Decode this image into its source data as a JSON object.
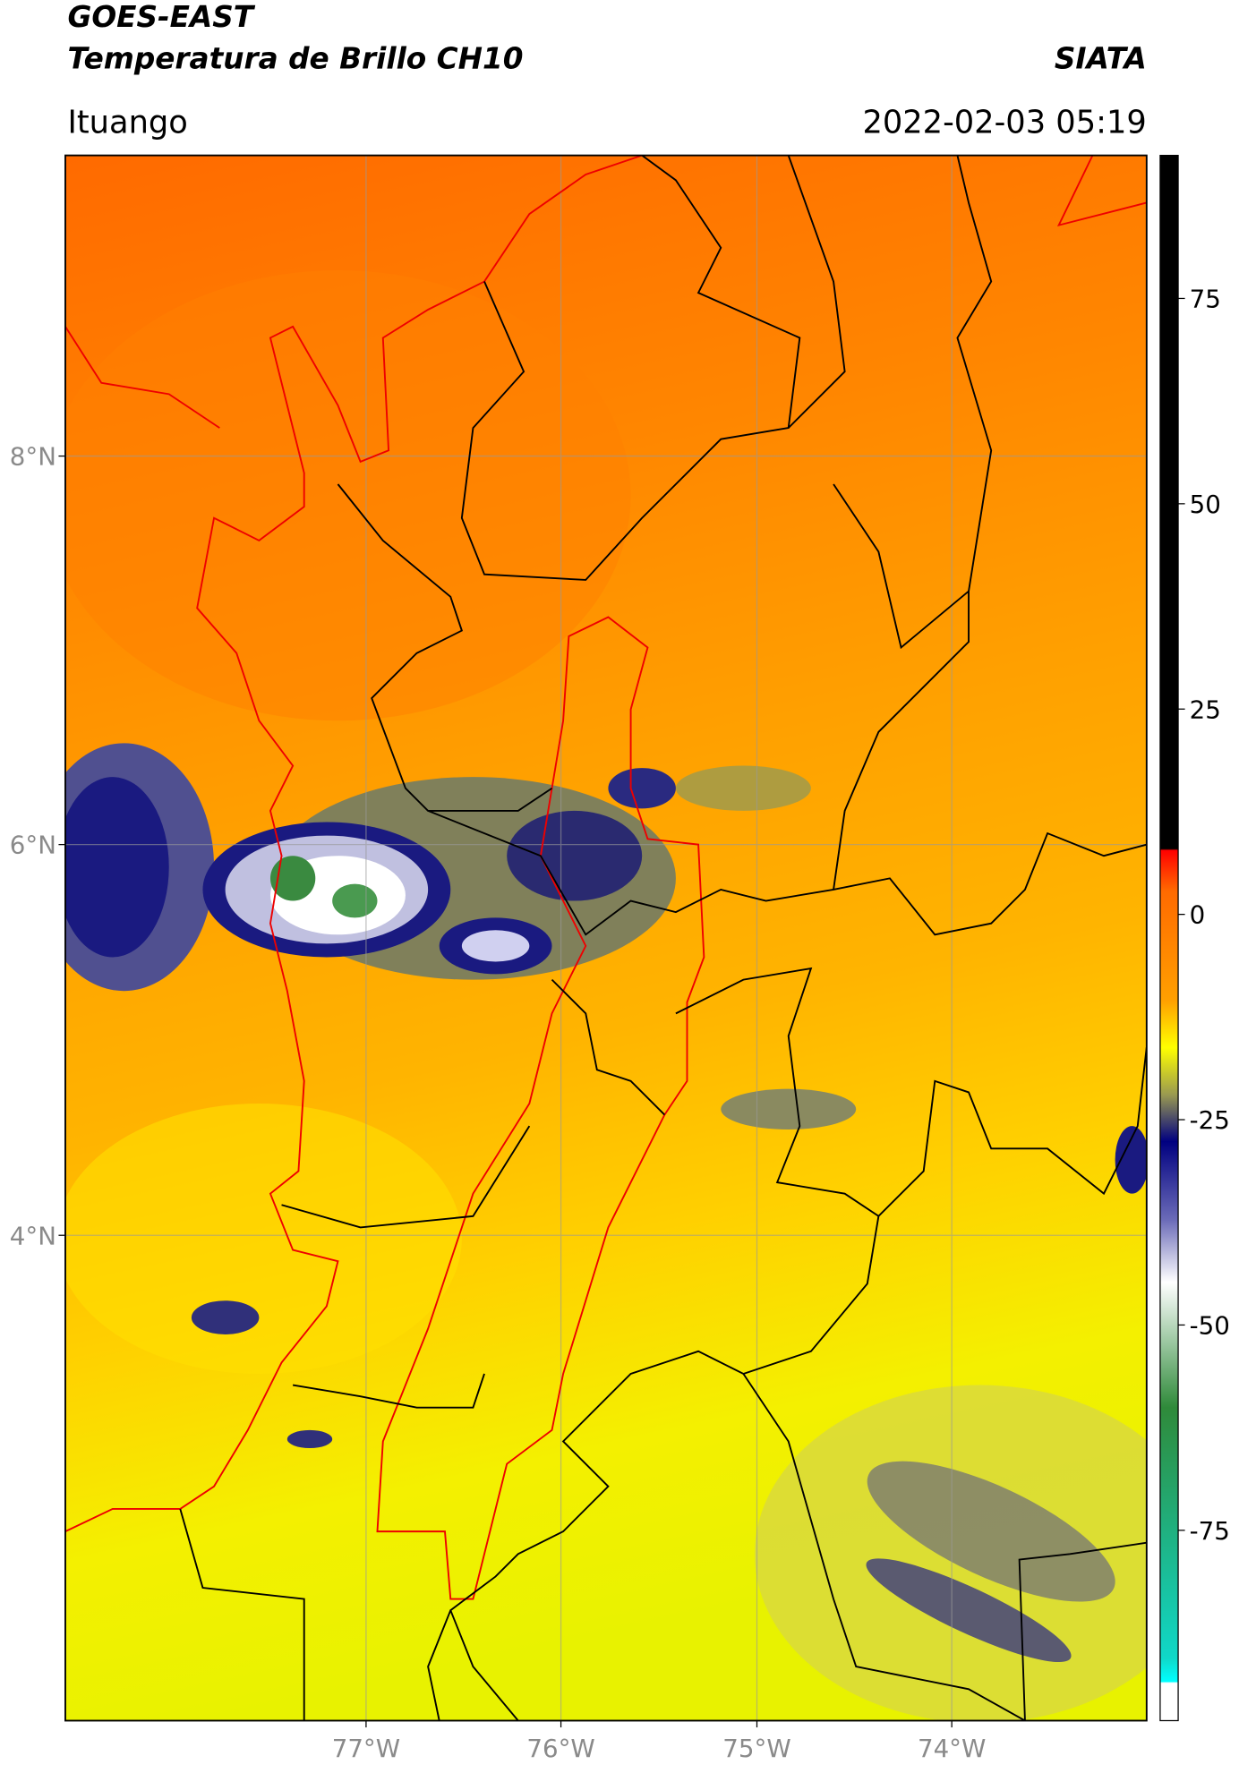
{
  "header": {
    "title": "GOES-EAST",
    "subtitle": "Temperatura de Brillo CH10",
    "source": "SIATA",
    "location": "Ituango",
    "datetime": "2022-02-03 05:19"
  },
  "map": {
    "lat_labels": [
      "8°N",
      "6°N",
      "4°N"
    ],
    "lon_labels": [
      "77°W",
      "76°W",
      "75°W",
      "74°W"
    ]
  },
  "colorbar": {
    "ticks": [
      75,
      50,
      25,
      0,
      -25,
      -50,
      -75
    ]
  }
}
